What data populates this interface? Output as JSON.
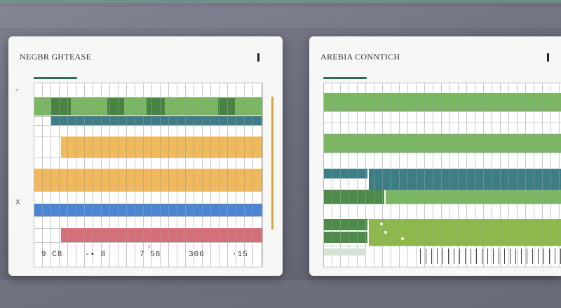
{
  "colors": {
    "green": "#7bb662",
    "green_dark": "#3f7a3f",
    "teal": "#3e7d86",
    "amber": "#f0b95b",
    "blue": "#4a86d4",
    "rose": "#d46f78",
    "lime": "#8fb84a",
    "accent_line": "#2f6e55"
  },
  "left_panel": {
    "title": "NEGBR GHTEASE",
    "close_glyph": "I",
    "row_marker_top": "‘‘",
    "row_marker_mid": "X",
    "axis_ticks": [
      "9 C8",
      "-• 8",
      "7 58",
      "306",
      "·15"
    ],
    "axis_marker": "›"
  },
  "right_panel": {
    "title": "AREBIA CONNTICH",
    "close_glyph": "I"
  }
}
